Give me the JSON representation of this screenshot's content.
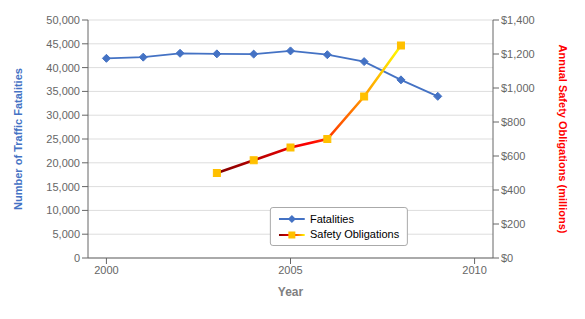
{
  "chart_data": {
    "type": "line",
    "xlabel": "Year",
    "ylabel": "Number of Traffic Fatalities",
    "y2label": "Annual Safety Obligations (millions)",
    "x": [
      2000,
      2001,
      2002,
      2003,
      2004,
      2005,
      2006,
      2007,
      2008,
      2009
    ],
    "series": [
      {
        "name": "Fatalities",
        "color": "#4472C4",
        "marker": "diamond",
        "values": [
          41945,
          42196,
          43005,
          42884,
          42836,
          43510,
          42708,
          41259,
          37423,
          33963
        ]
      },
      {
        "name": "Safety Obligations",
        "color": "#FFC000",
        "marker": "square",
        "axis": "y2",
        "values": [
          null,
          null,
          null,
          500,
          575,
          650,
          700,
          950,
          1250,
          null
        ]
      }
    ],
    "xlim": [
      1999.5,
      2010.5
    ],
    "xticks": [
      2000,
      2005,
      2010
    ],
    "ylim": [
      0,
      50000
    ],
    "yticks": [
      0,
      {
        "value": 5000,
        "label": "5,000"
      },
      {
        "value": 10000,
        "label": "10,000"
      },
      {
        "value": 15000,
        "label": "15,000"
      },
      {
        "value": 20000,
        "label": "20,000"
      },
      {
        "value": 25000,
        "label": "25,000"
      },
      {
        "value": 30000,
        "label": "30,000"
      },
      {
        "value": 35000,
        "label": "35,000"
      },
      {
        "value": 40000,
        "label": "40,000"
      },
      {
        "value": 45000,
        "label": "45,000"
      },
      {
        "value": 50000,
        "label": "50,000"
      }
    ],
    "y2lim": [
      0,
      1400
    ],
    "y2ticks": [
      {
        "value": 0,
        "label": "$0"
      },
      {
        "value": 200,
        "label": "$200"
      },
      {
        "value": 400,
        "label": "$400"
      },
      {
        "value": 600,
        "label": "$600"
      },
      {
        "value": 800,
        "label": "$800"
      },
      {
        "value": 1000,
        "label": "$1,000"
      },
      {
        "value": 1200,
        "label": "$1,200"
      },
      {
        "value": 1400,
        "label": "$1,400"
      }
    ],
    "grid": true,
    "legend": "bottom"
  }
}
